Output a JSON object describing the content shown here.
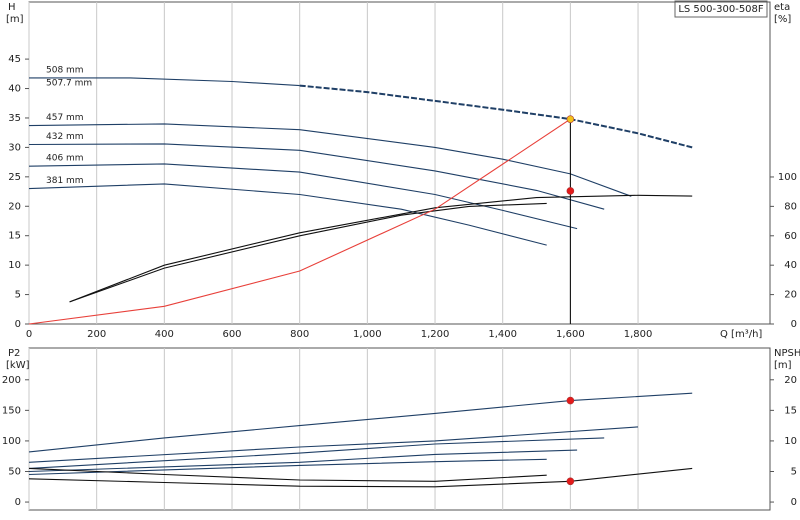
{
  "title": "LS 500-300-508F",
  "chart_data": [
    {
      "type": "line",
      "ylabel": "H",
      "yunit": "[m]",
      "y2label": "eta",
      "y2unit": "[%]",
      "xlabel": "Q [m³/h]",
      "xlim": [
        0,
        2190
      ],
      "xticks": [
        0,
        200,
        400,
        600,
        800,
        {
          "value": 1000,
          "label": "1,000"
        },
        {
          "value": 1200,
          "label": "1,200"
        },
        {
          "value": 1400,
          "label": "1,400"
        },
        {
          "value": 1600,
          "label": "1,600"
        },
        {
          "value": 1800,
          "label": "1,800"
        }
      ],
      "ylim": [
        0,
        54.7
      ],
      "yticks": [
        0,
        5,
        10,
        15,
        20,
        25,
        30,
        35,
        40,
        45
      ],
      "y2lim": [
        0,
        219
      ],
      "y2ticks": [
        0,
        20,
        40,
        60,
        80,
        100
      ],
      "grid": true,
      "series": [
        {
          "name": "508 mm",
          "color": "#1f3f66",
          "x": [
            0,
            300,
            600,
            800
          ],
          "values": [
            41.8,
            41.8,
            41.2,
            40.5
          ]
        },
        {
          "name": "507.7 mm",
          "color": "#1f3f66",
          "style": "dashed",
          "x": [
            800,
            1000,
            1200,
            1400,
            1600,
            1800,
            1960
          ],
          "values": [
            40.5,
            39.4,
            37.9,
            36.4,
            34.8,
            32.4,
            30.0
          ]
        },
        {
          "name": "457 mm",
          "color": "#1f3f66",
          "x": [
            0,
            400,
            800,
            1200,
            1400,
            1600,
            1780
          ],
          "values": [
            33.7,
            34.0,
            33.0,
            30.0,
            28.0,
            25.5,
            21.7
          ]
        },
        {
          "name": "432 mm",
          "color": "#1f3f66",
          "x": [
            0,
            400,
            800,
            1200,
            1500,
            1700
          ],
          "values": [
            30.5,
            30.6,
            29.5,
            26.0,
            22.7,
            19.5
          ]
        },
        {
          "name": "406 mm",
          "color": "#1f3f66",
          "x": [
            0,
            400,
            800,
            1200,
            1400,
            1620
          ],
          "values": [
            26.8,
            27.2,
            25.8,
            22.0,
            19.3,
            16.2
          ]
        },
        {
          "name": "381 mm",
          "color": "#1f3f66",
          "x": [
            0,
            400,
            800,
            1100,
            1300,
            1530
          ],
          "values": [
            23.0,
            23.8,
            22.0,
            19.5,
            16.8,
            13.4
          ]
        },
        {
          "color": "#111111",
          "axis": "y2",
          "x": [
            120,
            400,
            800,
            1200,
            1500,
            1800,
            1960
          ],
          "values": [
            15,
            40,
            62,
            79,
            86,
            87.5,
            87
          ]
        },
        {
          "color": "#111111",
          "axis": "y2",
          "x": [
            120,
            400,
            800,
            1100,
            1300,
            1530
          ],
          "values": [
            15,
            38,
            60,
            74,
            80,
            82
          ]
        },
        {
          "color": "#e8403a",
          "x": [
            0,
            400,
            800,
            1200,
            1600
          ],
          "values": [
            0,
            3,
            9,
            19.5,
            34.8
          ]
        }
      ],
      "points": [
        {
          "x": 1600,
          "y": 34.8,
          "color": "#f2c21b"
        },
        {
          "x": 1600,
          "y": 22.6,
          "color": "#e41a1a"
        }
      ],
      "vline": {
        "x": 1600,
        "y": 34.8
      }
    },
    {
      "type": "line",
      "ylabel": "P2",
      "yunit": "[kW]",
      "y2label": "NPSH",
      "y2unit": "[m]",
      "xlim": [
        0,
        2190
      ],
      "xticks": [
        0,
        200,
        400,
        600,
        800,
        1000,
        1200,
        1400,
        1600,
        1800
      ],
      "ylim": [
        -13,
        252
      ],
      "yticks": [
        0,
        50,
        100,
        150,
        200
      ],
      "y2lim": [
        -1.3,
        25.2
      ],
      "y2ticks": [
        0,
        5,
        10,
        15,
        20
      ],
      "grid": true,
      "series": [
        {
          "color": "#1f3f66",
          "x": [
            0,
            400,
            800,
            1200,
            1600,
            1960
          ],
          "values": [
            82,
            105,
            125,
            145,
            166,
            178
          ]
        },
        {
          "color": "#1f3f66",
          "x": [
            0,
            800,
            1200,
            1800
          ],
          "values": [
            65,
            90,
            100,
            123
          ]
        },
        {
          "color": "#1f3f66",
          "x": [
            0,
            800,
            1200,
            1700
          ],
          "values": [
            55,
            80,
            95,
            105
          ]
        },
        {
          "color": "#1f3f66",
          "x": [
            0,
            800,
            1200,
            1620
          ],
          "values": [
            50,
            65,
            78,
            85
          ]
        },
        {
          "color": "#1f3f66",
          "x": [
            0,
            800,
            1200,
            1530
          ],
          "values": [
            45,
            60,
            66,
            70
          ]
        },
        {
          "color": "#111111",
          "axis": "y2",
          "x": [
            0,
            400,
            800,
            1200,
            1600,
            1960
          ],
          "values": [
            3.8,
            3.2,
            2.6,
            2.5,
            3.4,
            5.5
          ]
        },
        {
          "color": "#111111",
          "axis": "y2",
          "x": [
            0,
            400,
            800,
            1200,
            1530
          ],
          "values": [
            5.5,
            4.5,
            3.6,
            3.4,
            4.4
          ]
        }
      ],
      "points": [
        {
          "x": 1600,
          "y": 166,
          "color": "#e41a1a"
        },
        {
          "x": 1600,
          "y": 3.4,
          "axis": "y2",
          "color": "#e41a1a"
        }
      ]
    }
  ]
}
